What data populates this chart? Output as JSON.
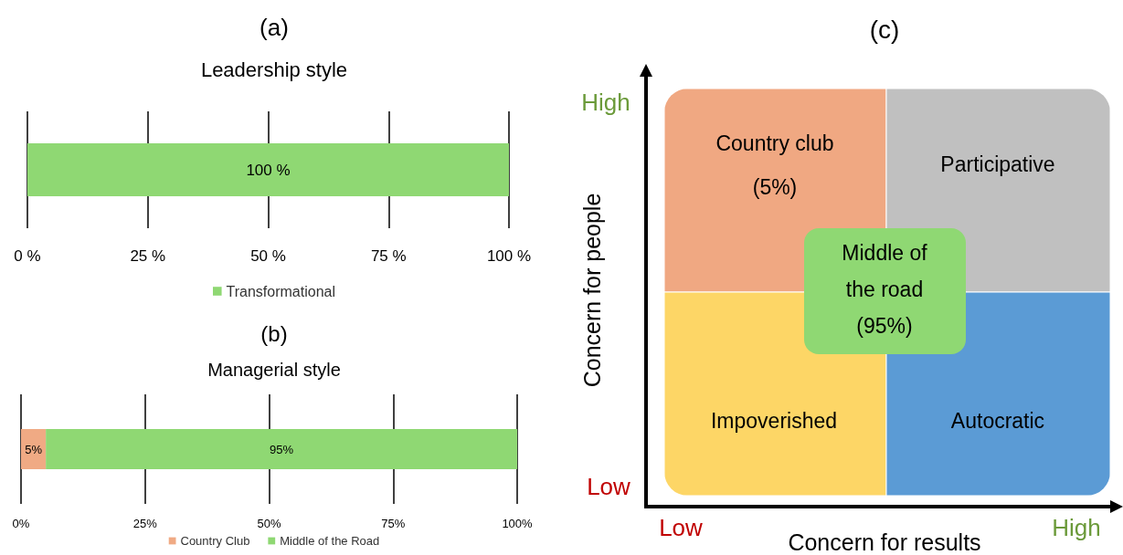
{
  "chart_data": [
    {
      "type": "bar",
      "orientation": "horizontal",
      "stacked": true,
      "title": "(a)",
      "subtitle": "Leadership style",
      "categories": [
        null
      ],
      "series": [
        {
          "name": "Transformational",
          "color": "#8fd873",
          "values": [
            100
          ],
          "value_labels": [
            "100 %"
          ]
        }
      ],
      "xlim": [
        0,
        100
      ],
      "xticks": [
        {
          "value": 0,
          "label": "0 %"
        },
        {
          "value": 25,
          "label": "25 %"
        },
        {
          "value": 50,
          "label": "50 %"
        },
        {
          "value": 75,
          "label": "75 %"
        },
        {
          "value": 100,
          "label": "100 %"
        }
      ],
      "grid": "x",
      "legend": "bottom"
    },
    {
      "type": "bar",
      "orientation": "horizontal",
      "stacked": true,
      "title": "(b)",
      "subtitle": "Managerial style",
      "categories": [
        null
      ],
      "series": [
        {
          "name": "Country Club",
          "color": "#f0aa84",
          "values": [
            5
          ],
          "value_labels": [
            "5%"
          ]
        },
        {
          "name": "Middle of the Road",
          "color": "#8fd873",
          "values": [
            95
          ],
          "value_labels": [
            "95%"
          ]
        }
      ],
      "xlim": [
        0,
        100
      ],
      "xticks": [
        {
          "value": 0,
          "label": "0%"
        },
        {
          "value": 25,
          "label": "25%"
        },
        {
          "value": 50,
          "label": "50%"
        },
        {
          "value": 75,
          "label": "75%"
        },
        {
          "value": 100,
          "label": "100%"
        }
      ],
      "grid": "x",
      "legend": "bottom"
    },
    {
      "type": "other",
      "title": "(c)",
      "xlabel": "Concern for results",
      "ylabel": "Concern for people",
      "annotations": [
        "Country club\n(5%)",
        "Participative",
        "Impoverished",
        "Autocratic",
        "Middle of\nthe road\n(95%)",
        "High",
        "Low",
        "Low",
        "High"
      ],
      "colors": [
        "#f0a882",
        "#c0c0c0",
        "#fdd666",
        "#5b9bd5",
        "#8fd873"
      ]
    }
  ]
}
